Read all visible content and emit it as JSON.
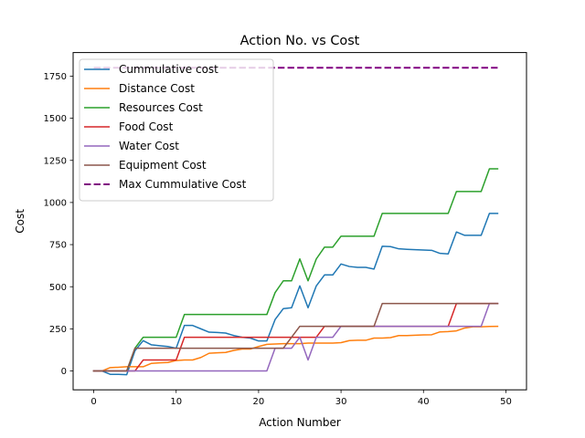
{
  "chart_data": {
    "type": "line",
    "title": "Action No. vs Cost",
    "xlabel": "Action Number",
    "ylabel": "Cost",
    "xlim": [
      -2.5,
      52.5
    ],
    "ylim": [
      -112,
      1890
    ],
    "xticks": [
      0,
      10,
      20,
      30,
      40,
      50
    ],
    "yticks": [
      0,
      250,
      500,
      750,
      1000,
      1250,
      1500,
      1750
    ],
    "ytick_labels": [
      "0",
      "250",
      "500",
      "750",
      "1000",
      "1250",
      "1500",
      "1750"
    ],
    "grid": false,
    "legend_position": "top-left",
    "series": [
      {
        "name": "Cummulative cost",
        "color": "#1f77b4",
        "dashed": false,
        "x": [
          0,
          1,
          2,
          3,
          4,
          5,
          6,
          7,
          8,
          9,
          10,
          11,
          12,
          13,
          14,
          15,
          16,
          17,
          18,
          19,
          20,
          21,
          22,
          23,
          24,
          25,
          26,
          27,
          28,
          29,
          30,
          31,
          32,
          33,
          34,
          35,
          36,
          37,
          38,
          39,
          40,
          41,
          42,
          43,
          44,
          45,
          46,
          47,
          48,
          49
        ],
        "y": [
          0,
          0,
          -20,
          -20,
          -22,
          120,
          180,
          155,
          150,
          145,
          135,
          270,
          270,
          250,
          230,
          228,
          225,
          210,
          200,
          195,
          178,
          178,
          305,
          370,
          375,
          505,
          375,
          505,
          570,
          570,
          635,
          620,
          615,
          615,
          605,
          740,
          738,
          725,
          722,
          720,
          718,
          716,
          698,
          695,
          825,
          805,
          805,
          805,
          935,
          935
        ]
      },
      {
        "name": "Distance Cost",
        "color": "#ff7f0e",
        "dashed": false,
        "x": [
          0,
          1,
          2,
          3,
          4,
          5,
          6,
          7,
          8,
          9,
          10,
          11,
          12,
          13,
          14,
          15,
          16,
          17,
          18,
          19,
          20,
          21,
          22,
          23,
          24,
          25,
          26,
          27,
          28,
          29,
          30,
          31,
          32,
          33,
          34,
          35,
          36,
          37,
          38,
          39,
          40,
          41,
          42,
          43,
          44,
          45,
          46,
          47,
          48,
          49
        ],
        "y": [
          0,
          0,
          20,
          22,
          25,
          25,
          25,
          45,
          48,
          50,
          62,
          65,
          65,
          80,
          105,
          108,
          110,
          122,
          130,
          130,
          145,
          158,
          160,
          162,
          162,
          162,
          165,
          165,
          165,
          165,
          168,
          180,
          182,
          182,
          195,
          195,
          198,
          210,
          210,
          212,
          214,
          215,
          232,
          234,
          238,
          255,
          262,
          262,
          264,
          265
        ]
      },
      {
        "name": "Resources Cost",
        "color": "#2ca02c",
        "dashed": false,
        "x": [
          0,
          1,
          2,
          3,
          4,
          5,
          6,
          7,
          8,
          9,
          10,
          11,
          12,
          13,
          14,
          15,
          16,
          17,
          18,
          19,
          20,
          21,
          22,
          23,
          24,
          25,
          26,
          27,
          28,
          29,
          30,
          31,
          32,
          33,
          34,
          35,
          36,
          37,
          38,
          39,
          40,
          41,
          42,
          43,
          44,
          45,
          46,
          47,
          48,
          49
        ],
        "y": [
          0,
          0,
          0,
          0,
          0,
          135,
          200,
          200,
          200,
          200,
          200,
          335,
          335,
          335,
          335,
          335,
          335,
          335,
          335,
          335,
          335,
          335,
          465,
          535,
          535,
          665,
          535,
          665,
          735,
          735,
          800,
          800,
          800,
          800,
          800,
          935,
          935,
          935,
          935,
          935,
          935,
          935,
          935,
          935,
          1065,
          1065,
          1065,
          1065,
          1200,
          1200
        ]
      },
      {
        "name": "Food Cost",
        "color": "#d62728",
        "dashed": false,
        "x": [
          0,
          1,
          2,
          3,
          4,
          5,
          6,
          7,
          8,
          9,
          10,
          11,
          12,
          13,
          14,
          15,
          16,
          17,
          18,
          19,
          20,
          21,
          22,
          23,
          24,
          25,
          26,
          27,
          28,
          29,
          30,
          31,
          32,
          33,
          34,
          35,
          36,
          37,
          38,
          39,
          40,
          41,
          42,
          43,
          44,
          45,
          46,
          47,
          48,
          49
        ],
        "y": [
          0,
          0,
          0,
          0,
          0,
          0,
          65,
          65,
          65,
          65,
          65,
          200,
          200,
          200,
          200,
          200,
          200,
          200,
          200,
          200,
          200,
          200,
          200,
          200,
          200,
          200,
          200,
          200,
          265,
          265,
          265,
          265,
          265,
          265,
          265,
          265,
          265,
          265,
          265,
          265,
          265,
          265,
          265,
          265,
          400,
          400,
          400,
          400,
          400,
          400
        ]
      },
      {
        "name": "Water Cost",
        "color": "#9467bd",
        "dashed": false,
        "x": [
          0,
          1,
          2,
          3,
          4,
          5,
          6,
          7,
          8,
          9,
          10,
          11,
          12,
          13,
          14,
          15,
          16,
          17,
          18,
          19,
          20,
          21,
          22,
          23,
          24,
          25,
          26,
          27,
          28,
          29,
          30,
          31,
          32,
          33,
          34,
          35,
          36,
          37,
          38,
          39,
          40,
          41,
          42,
          43,
          44,
          45,
          46,
          47,
          48,
          49
        ],
        "y": [
          0,
          0,
          0,
          0,
          0,
          0,
          0,
          0,
          0,
          0,
          0,
          0,
          0,
          0,
          0,
          0,
          0,
          0,
          0,
          0,
          0,
          0,
          135,
          135,
          135,
          200,
          65,
          200,
          200,
          200,
          265,
          265,
          265,
          265,
          265,
          265,
          265,
          265,
          265,
          265,
          265,
          265,
          265,
          265,
          265,
          265,
          265,
          265,
          400,
          400
        ]
      },
      {
        "name": "Equipment Cost",
        "color": "#8c564b",
        "dashed": false,
        "x": [
          0,
          1,
          2,
          3,
          4,
          5,
          6,
          7,
          8,
          9,
          10,
          11,
          12,
          13,
          14,
          15,
          16,
          17,
          18,
          19,
          20,
          21,
          22,
          23,
          24,
          25,
          26,
          27,
          28,
          29,
          30,
          31,
          32,
          33,
          34,
          35,
          36,
          37,
          38,
          39,
          40,
          41,
          42,
          43,
          44,
          45,
          46,
          47,
          48,
          49
        ],
        "y": [
          0,
          0,
          0,
          0,
          0,
          135,
          135,
          135,
          135,
          135,
          135,
          135,
          135,
          135,
          135,
          135,
          135,
          135,
          135,
          135,
          135,
          135,
          135,
          135,
          200,
          265,
          265,
          265,
          265,
          265,
          265,
          265,
          265,
          265,
          265,
          400,
          400,
          400,
          400,
          400,
          400,
          400,
          400,
          400,
          400,
          400,
          400,
          400,
          400,
          400
        ]
      },
      {
        "name": "Max Cummulative Cost",
        "color": "#800080",
        "dashed": true,
        "x": [
          0,
          49
        ],
        "y": [
          1800,
          1800
        ]
      }
    ]
  }
}
